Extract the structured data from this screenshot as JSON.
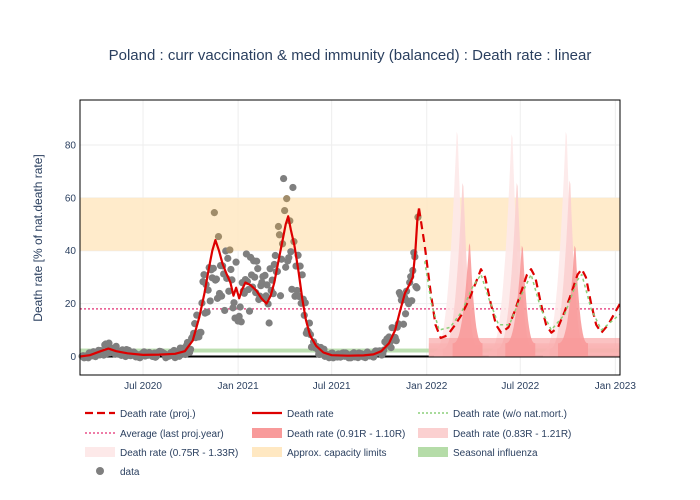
{
  "chart_data": {
    "type": "line",
    "title": "Poland : curr vaccination & med immunity (balanced) : Death rate : linear",
    "ylabel": "Death rate [% of nat.death rate]",
    "xlabel": "",
    "x_range": [
      "2020-03-01",
      "2023-01-10"
    ],
    "y_range": [
      -7,
      97
    ],
    "y_ticks": [
      0,
      20,
      40,
      60,
      80
    ],
    "x_ticks": [
      {
        "date": "2020-07-01",
        "label": "Jul 2020"
      },
      {
        "date": "2021-01-01",
        "label": "Jan 2021"
      },
      {
        "date": "2021-07-01",
        "label": "Jul 2021"
      },
      {
        "date": "2022-01-01",
        "label": "Jan 2022"
      },
      {
        "date": "2022-07-01",
        "label": "Jul 2022"
      },
      {
        "date": "2023-01-01",
        "label": "Jan 2023"
      }
    ],
    "grid": true,
    "legend_position": "bottom",
    "bands": {
      "capacity": {
        "name": "Approx. capacity limits",
        "y": [
          40,
          60
        ],
        "color": "#ffe8c2"
      },
      "influenza": {
        "name": "Seasonal influenza",
        "y": [
          1.5,
          3
        ],
        "color": "#b5dca8"
      }
    },
    "average": {
      "name": "Average (last proj.year)",
      "value": 18,
      "color": "#e8508a"
    },
    "series": [
      {
        "name": "Death rate",
        "color": "#dd0000",
        "points": [
          [
            "2020-03-01",
            0
          ],
          [
            "2020-03-20",
            0.5
          ],
          [
            "2020-04-10",
            2
          ],
          [
            "2020-04-25",
            3
          ],
          [
            "2020-05-10",
            2
          ],
          [
            "2020-06-01",
            1.2
          ],
          [
            "2020-07-01",
            0.6
          ],
          [
            "2020-08-01",
            0.7
          ],
          [
            "2020-09-01",
            1
          ],
          [
            "2020-09-20",
            2
          ],
          [
            "2020-10-05",
            6
          ],
          [
            "2020-10-18",
            15
          ],
          [
            "2020-10-28",
            24
          ],
          [
            "2020-11-05",
            33
          ],
          [
            "2020-11-12",
            40
          ],
          [
            "2020-11-18",
            44
          ],
          [
            "2020-11-25",
            40
          ],
          [
            "2020-12-02",
            35
          ],
          [
            "2020-12-10",
            31
          ],
          [
            "2020-12-17",
            28
          ],
          [
            "2020-12-23",
            23
          ],
          [
            "2020-12-28",
            26
          ],
          [
            "2021-01-03",
            22
          ],
          [
            "2021-01-08",
            25
          ],
          [
            "2021-01-15",
            28
          ],
          [
            "2021-01-25",
            27
          ],
          [
            "2021-02-05",
            25
          ],
          [
            "2021-02-15",
            22
          ],
          [
            "2021-02-25",
            20
          ],
          [
            "2021-03-05",
            23
          ],
          [
            "2021-03-12",
            28
          ],
          [
            "2021-03-20",
            36
          ],
          [
            "2021-03-28",
            44
          ],
          [
            "2021-04-03",
            50
          ],
          [
            "2021-04-08",
            53
          ],
          [
            "2021-04-13",
            48
          ],
          [
            "2021-04-20",
            42
          ],
          [
            "2021-04-28",
            32
          ],
          [
            "2021-05-05",
            22
          ],
          [
            "2021-05-12",
            14
          ],
          [
            "2021-05-20",
            8
          ],
          [
            "2021-06-01",
            4
          ],
          [
            "2021-06-15",
            1.5
          ],
          [
            "2021-07-01",
            0.5
          ],
          [
            "2021-08-01",
            0.3
          ],
          [
            "2021-09-01",
            0.4
          ],
          [
            "2021-09-20",
            0.8
          ],
          [
            "2021-10-05",
            2
          ],
          [
            "2021-10-20",
            5
          ],
          [
            "2021-11-01",
            10
          ],
          [
            "2021-11-10",
            17
          ],
          [
            "2021-11-20",
            24
          ],
          [
            "2021-11-28",
            27
          ],
          [
            "2021-12-05",
            30
          ],
          [
            "2021-12-10",
            40
          ],
          [
            "2021-12-14",
            52
          ],
          [
            "2021-12-17",
            56
          ]
        ]
      },
      {
        "name": "Death rate (proj.)",
        "color": "#dd0000",
        "dash": "dashed",
        "points": [
          [
            "2021-12-17",
            56
          ],
          [
            "2021-12-28",
            42
          ],
          [
            "2022-01-08",
            25
          ],
          [
            "2022-01-18",
            12
          ],
          [
            "2022-01-28",
            7
          ],
          [
            "2022-02-10",
            8
          ],
          [
            "2022-02-25",
            12
          ],
          [
            "2022-03-10",
            16
          ],
          [
            "2022-03-25",
            22
          ],
          [
            "2022-04-08",
            29
          ],
          [
            "2022-04-16",
            33
          ],
          [
            "2022-04-24",
            30
          ],
          [
            "2022-05-05",
            20
          ],
          [
            "2022-05-15",
            12
          ],
          [
            "2022-05-25",
            9
          ],
          [
            "2022-06-08",
            11
          ],
          [
            "2022-06-20",
            17
          ],
          [
            "2022-07-02",
            24
          ],
          [
            "2022-07-14",
            31
          ],
          [
            "2022-07-22",
            33
          ],
          [
            "2022-07-30",
            30
          ],
          [
            "2022-08-10",
            20
          ],
          [
            "2022-08-20",
            12
          ],
          [
            "2022-08-30",
            9
          ],
          [
            "2022-09-12",
            11
          ],
          [
            "2022-09-25",
            17
          ],
          [
            "2022-10-08",
            24
          ],
          [
            "2022-10-20",
            31
          ],
          [
            "2022-10-28",
            33
          ],
          [
            "2022-11-05",
            30
          ],
          [
            "2022-11-15",
            20
          ],
          [
            "2022-11-25",
            12
          ],
          [
            "2022-12-05",
            9
          ],
          [
            "2022-12-18",
            12
          ],
          [
            "2023-01-10",
            20
          ]
        ]
      },
      {
        "name": "Death rate (w/o nat.mort.)",
        "color": "#8ccf7a",
        "dash": "dotted",
        "points": [
          [
            "2021-12-28",
            36
          ],
          [
            "2022-01-10",
            20
          ],
          [
            "2022-01-25",
            10
          ],
          [
            "2022-02-15",
            11
          ],
          [
            "2022-03-10",
            17
          ],
          [
            "2022-03-30",
            26
          ],
          [
            "2022-04-16",
            31
          ],
          [
            "2022-05-01",
            22
          ],
          [
            "2022-05-20",
            12
          ],
          [
            "2022-06-10",
            12
          ],
          [
            "2022-07-05",
            24
          ],
          [
            "2022-07-22",
            31
          ],
          [
            "2022-08-10",
            18
          ],
          [
            "2022-08-30",
            10
          ],
          [
            "2022-09-25",
            16
          ],
          [
            "2022-10-20",
            29
          ],
          [
            "2022-10-28",
            31
          ],
          [
            "2022-11-15",
            18
          ],
          [
            "2022-12-05",
            10
          ],
          [
            "2023-01-10",
            16
          ]
        ]
      }
    ],
    "projection_bands": [
      {
        "name": "Death rate (0.75R - 1.33R)",
        "color": "#fde9e9",
        "peaks": [
          [
            "2022-03-01",
            90
          ],
          [
            "2022-06-15",
            89
          ],
          [
            "2022-09-28",
            90
          ]
        ],
        "low": 2
      },
      {
        "name": "Death rate (0.83R - 1.21R)",
        "color": "#fbd0d0",
        "peaks": [
          [
            "2022-03-12",
            70
          ],
          [
            "2022-06-25",
            70
          ],
          [
            "2022-10-05",
            71
          ]
        ],
        "low": 3
      },
      {
        "name": "Death rate (0.91R - 1.10R)",
        "color": "#f89a9a",
        "peaks": [
          [
            "2022-03-25",
            46
          ],
          [
            "2022-07-05",
            45
          ],
          [
            "2022-10-15",
            45
          ]
        ],
        "low": 5
      }
    ],
    "data_points": {
      "name": "data",
      "color": "#7f7f7f",
      "highlight_color": "#a08c6a"
    },
    "legend": [
      {
        "key": "proj",
        "label": "Death rate (proj.)"
      },
      {
        "key": "rate",
        "label": "Death rate"
      },
      {
        "key": "wo",
        "label": "Death rate (w/o nat.mort.)"
      },
      {
        "key": "avg",
        "label": "Average (last proj.year)"
      },
      {
        "key": "b91",
        "label": "Death rate (0.91R - 1.10R)"
      },
      {
        "key": "b83",
        "label": "Death rate (0.83R - 1.21R)"
      },
      {
        "key": "b75",
        "label": "Death rate (0.75R - 1.33R)"
      },
      {
        "key": "cap",
        "label": "Approx. capacity limits"
      },
      {
        "key": "flu",
        "label": "Seasonal influenza"
      },
      {
        "key": "data",
        "label": "data"
      }
    ]
  }
}
